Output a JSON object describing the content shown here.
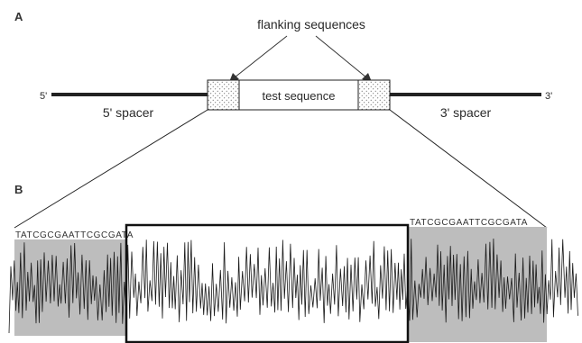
{
  "panels": {
    "a": "A",
    "b": "B"
  },
  "construct": {
    "callout": "flanking sequences",
    "end_5": "5'",
    "end_3": "3'",
    "spacer_5": "5' spacer",
    "spacer_3": "3' spacer",
    "test_label": "test sequence"
  },
  "trace": {
    "flank_sequence_left": "TATCGCGAATTCGCGATA",
    "flank_sequence_right": "TATCGCGAATTCGCGATA"
  },
  "colors": {
    "line": "#222222",
    "shade": "#bdbdbd",
    "trace": "#1a1a1a"
  }
}
